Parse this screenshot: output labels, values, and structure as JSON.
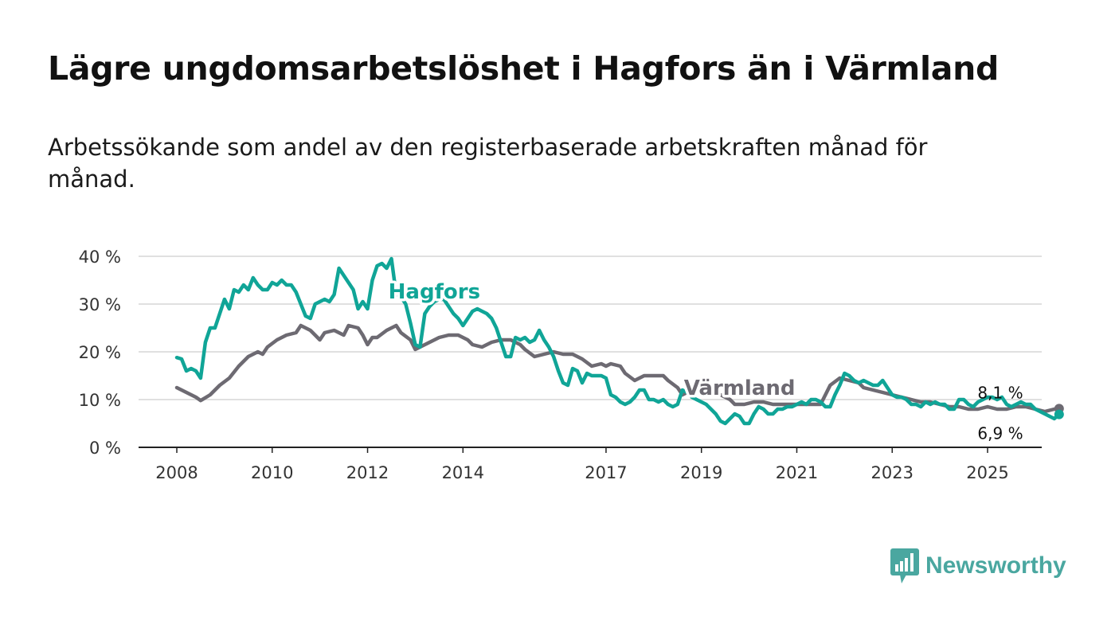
{
  "title": "Lägre ungdomsarbetslöshet i Hagfors än i Värmland",
  "subtitle": "Arbetssökande som andel av den registerbaserade arbetskraften månad för månad.",
  "brand": {
    "name": "Newsworthy",
    "logo_icon": "bar-chart-speech-bubble-icon"
  },
  "colors": {
    "hagfors": "#10a597",
    "varmland": "#6d6a72",
    "grid": "#d6d6d6",
    "brand": "#4aa7a0"
  },
  "chart_data": {
    "type": "line",
    "title": "Lägre ungdomsarbetslöshet i Hagfors än i Värmland",
    "xlabel": "",
    "ylabel": "",
    "ylim": [
      0,
      40
    ],
    "xlim": [
      2007.83,
      2026.5
    ],
    "yticks": [
      0,
      10,
      20,
      30,
      40
    ],
    "ytick_labels": [
      "0 %",
      "10 %",
      "20 %",
      "30 %",
      "40 %"
    ],
    "xticks": [
      2008,
      2010,
      2012,
      2014,
      2017,
      2019,
      2021,
      2023,
      2025
    ],
    "xtick_labels": [
      "2008",
      "2010",
      "2012",
      "2014",
      "2017",
      "2019",
      "2021",
      "2023",
      "2025"
    ],
    "grid": true,
    "series": [
      {
        "name": "Hagfors",
        "label_at": [
          2013.4,
          31.2
        ],
        "end_label": "6,9 %",
        "points": [
          [
            2008.0,
            18.8
          ],
          [
            2008.1,
            18.5
          ],
          [
            2008.2,
            16.0
          ],
          [
            2008.3,
            16.5
          ],
          [
            2008.4,
            16.0
          ],
          [
            2008.5,
            14.5
          ],
          [
            2008.6,
            22.0
          ],
          [
            2008.7,
            25.0
          ],
          [
            2008.8,
            25.0
          ],
          [
            2008.9,
            28.0
          ],
          [
            2009.0,
            31.0
          ],
          [
            2009.1,
            29.0
          ],
          [
            2009.2,
            33.0
          ],
          [
            2009.3,
            32.5
          ],
          [
            2009.4,
            34.0
          ],
          [
            2009.5,
            33.0
          ],
          [
            2009.6,
            35.5
          ],
          [
            2009.7,
            34.0
          ],
          [
            2009.8,
            33.0
          ],
          [
            2009.9,
            33.0
          ],
          [
            2010.0,
            34.5
          ],
          [
            2010.1,
            34.0
          ],
          [
            2010.2,
            35.0
          ],
          [
            2010.3,
            34.0
          ],
          [
            2010.4,
            34.0
          ],
          [
            2010.5,
            32.5
          ],
          [
            2010.6,
            30.0
          ],
          [
            2010.7,
            27.5
          ],
          [
            2010.8,
            27.0
          ],
          [
            2010.9,
            30.0
          ],
          [
            2011.0,
            30.5
          ],
          [
            2011.1,
            31.0
          ],
          [
            2011.2,
            30.5
          ],
          [
            2011.3,
            32.0
          ],
          [
            2011.4,
            37.5
          ],
          [
            2011.5,
            36.0
          ],
          [
            2011.6,
            34.5
          ],
          [
            2011.7,
            33.0
          ],
          [
            2011.8,
            29.0
          ],
          [
            2011.9,
            30.5
          ],
          [
            2012.0,
            29.0
          ],
          [
            2012.1,
            35.0
          ],
          [
            2012.2,
            38.0
          ],
          [
            2012.3,
            38.5
          ],
          [
            2012.4,
            37.5
          ],
          [
            2012.5,
            39.5
          ],
          [
            2012.6,
            32.0
          ],
          [
            2012.7,
            31.5
          ],
          [
            2012.8,
            30.0
          ],
          [
            2012.9,
            26.0
          ],
          [
            2013.0,
            21.5
          ],
          [
            2013.1,
            21.0
          ],
          [
            2013.2,
            28.0
          ],
          [
            2013.3,
            29.5
          ],
          [
            2013.4,
            30.5
          ],
          [
            2013.5,
            31.0
          ],
          [
            2013.6,
            31.0
          ],
          [
            2013.7,
            29.5
          ],
          [
            2013.8,
            28.0
          ],
          [
            2013.9,
            27.0
          ],
          [
            2014.0,
            25.5
          ],
          [
            2014.1,
            27.0
          ],
          [
            2014.2,
            28.5
          ],
          [
            2014.3,
            29.0
          ],
          [
            2014.4,
            28.5
          ],
          [
            2014.5,
            28.0
          ],
          [
            2014.6,
            27.0
          ],
          [
            2014.7,
            25.0
          ],
          [
            2014.8,
            22.0
          ],
          [
            2014.9,
            19.0
          ],
          [
            2015.0,
            19.0
          ],
          [
            2015.1,
            23.0
          ],
          [
            2015.2,
            22.5
          ],
          [
            2015.3,
            23.0
          ],
          [
            2015.4,
            22.0
          ],
          [
            2015.5,
            22.5
          ],
          [
            2015.6,
            24.5
          ],
          [
            2015.7,
            22.5
          ],
          [
            2015.8,
            21.0
          ],
          [
            2015.9,
            19.0
          ],
          [
            2016.0,
            16.0
          ],
          [
            2016.1,
            13.5
          ],
          [
            2016.2,
            13.0
          ],
          [
            2016.3,
            16.5
          ],
          [
            2016.4,
            16.0
          ],
          [
            2016.5,
            13.5
          ],
          [
            2016.6,
            15.5
          ],
          [
            2016.7,
            15.0
          ],
          [
            2016.8,
            15.0
          ],
          [
            2016.9,
            15.0
          ],
          [
            2017.0,
            14.5
          ],
          [
            2017.1,
            11.0
          ],
          [
            2017.2,
            10.5
          ],
          [
            2017.3,
            9.5
          ],
          [
            2017.4,
            9.0
          ],
          [
            2017.5,
            9.5
          ],
          [
            2017.6,
            10.5
          ],
          [
            2017.7,
            12.0
          ],
          [
            2017.8,
            12.0
          ],
          [
            2017.9,
            10.0
          ],
          [
            2018.0,
            10.0
          ],
          [
            2018.1,
            9.5
          ],
          [
            2018.2,
            10.0
          ],
          [
            2018.3,
            9.0
          ],
          [
            2018.4,
            8.5
          ],
          [
            2018.5,
            9.0
          ],
          [
            2018.6,
            12.0
          ],
          [
            2018.7,
            11.5
          ],
          [
            2018.8,
            10.5
          ],
          [
            2018.9,
            10.0
          ],
          [
            2019.0,
            9.5
          ],
          [
            2019.1,
            9.0
          ],
          [
            2019.2,
            8.0
          ],
          [
            2019.3,
            7.0
          ],
          [
            2019.4,
            5.5
          ],
          [
            2019.5,
            5.0
          ],
          [
            2019.6,
            6.0
          ],
          [
            2019.7,
            7.0
          ],
          [
            2019.8,
            6.5
          ],
          [
            2019.9,
            5.0
          ],
          [
            2020.0,
            5.0
          ],
          [
            2020.1,
            7.0
          ],
          [
            2020.2,
            8.5
          ],
          [
            2020.3,
            8.0
          ],
          [
            2020.4,
            7.0
          ],
          [
            2020.5,
            7.0
          ],
          [
            2020.6,
            8.0
          ],
          [
            2020.7,
            8.0
          ],
          [
            2020.8,
            8.5
          ],
          [
            2020.9,
            8.5
          ],
          [
            2021.0,
            9.0
          ],
          [
            2021.1,
            9.5
          ],
          [
            2021.2,
            9.0
          ],
          [
            2021.3,
            10.0
          ],
          [
            2021.4,
            10.0
          ],
          [
            2021.5,
            9.5
          ],
          [
            2021.6,
            8.5
          ],
          [
            2021.7,
            8.5
          ],
          [
            2021.8,
            11.0
          ],
          [
            2021.9,
            13.0
          ],
          [
            2022.0,
            15.5
          ],
          [
            2022.1,
            15.0
          ],
          [
            2022.2,
            14.0
          ],
          [
            2022.3,
            13.5
          ],
          [
            2022.4,
            14.0
          ],
          [
            2022.5,
            13.5
          ],
          [
            2022.6,
            13.0
          ],
          [
            2022.7,
            13.0
          ],
          [
            2022.8,
            14.0
          ],
          [
            2022.9,
            12.5
          ],
          [
            2023.0,
            11.0
          ],
          [
            2023.1,
            10.5
          ],
          [
            2023.2,
            10.5
          ],
          [
            2023.3,
            10.0
          ],
          [
            2023.4,
            9.0
          ],
          [
            2023.5,
            9.0
          ],
          [
            2023.6,
            8.5
          ],
          [
            2023.7,
            9.5
          ],
          [
            2023.8,
            9.0
          ],
          [
            2023.9,
            9.5
          ],
          [
            2024.0,
            9.0
          ],
          [
            2024.1,
            9.0
          ],
          [
            2024.2,
            8.0
          ],
          [
            2024.3,
            8.0
          ],
          [
            2024.4,
            10.0
          ],
          [
            2024.5,
            10.0
          ],
          [
            2024.6,
            9.0
          ],
          [
            2024.7,
            8.5
          ],
          [
            2024.8,
            9.5
          ],
          [
            2024.9,
            10.0
          ],
          [
            2025.0,
            10.5
          ],
          [
            2025.1,
            10.5
          ],
          [
            2025.2,
            10.0
          ],
          [
            2025.3,
            10.5
          ],
          [
            2025.4,
            9.0
          ],
          [
            2025.5,
            8.5
          ],
          [
            2025.6,
            9.0
          ],
          [
            2025.7,
            9.5
          ],
          [
            2025.8,
            9.0
          ],
          [
            2025.9,
            9.0
          ],
          [
            2026.0,
            8.0
          ],
          [
            2026.1,
            7.5
          ],
          [
            2026.2,
            7.0
          ],
          [
            2026.3,
            6.5
          ],
          [
            2026.4,
            6.0
          ],
          [
            2026.5,
            6.9
          ]
        ]
      },
      {
        "name": "Värmland",
        "label_at": [
          2019.8,
          11.0
        ],
        "end_label": "8,1 %",
        "points": [
          [
            2008.0,
            12.5
          ],
          [
            2008.2,
            11.5
          ],
          [
            2008.4,
            10.5
          ],
          [
            2008.5,
            9.8
          ],
          [
            2008.7,
            11.0
          ],
          [
            2008.9,
            13.0
          ],
          [
            2009.1,
            14.5
          ],
          [
            2009.3,
            17.0
          ],
          [
            2009.5,
            19.0
          ],
          [
            2009.7,
            20.0
          ],
          [
            2009.8,
            19.5
          ],
          [
            2009.9,
            21.0
          ],
          [
            2010.1,
            22.5
          ],
          [
            2010.3,
            23.5
          ],
          [
            2010.5,
            24.0
          ],
          [
            2010.6,
            25.5
          ],
          [
            2010.8,
            24.5
          ],
          [
            2010.9,
            23.5
          ],
          [
            2011.0,
            22.5
          ],
          [
            2011.1,
            24.0
          ],
          [
            2011.3,
            24.5
          ],
          [
            2011.5,
            23.5
          ],
          [
            2011.6,
            25.5
          ],
          [
            2011.8,
            25.0
          ],
          [
            2011.9,
            23.5
          ],
          [
            2012.0,
            21.5
          ],
          [
            2012.1,
            23.0
          ],
          [
            2012.2,
            23.0
          ],
          [
            2012.4,
            24.5
          ],
          [
            2012.6,
            25.5
          ],
          [
            2012.7,
            24.0
          ],
          [
            2012.9,
            22.5
          ],
          [
            2013.0,
            20.5
          ],
          [
            2013.1,
            21.0
          ],
          [
            2013.3,
            22.0
          ],
          [
            2013.5,
            23.0
          ],
          [
            2013.7,
            23.5
          ],
          [
            2013.9,
            23.5
          ],
          [
            2014.1,
            22.5
          ],
          [
            2014.2,
            21.5
          ],
          [
            2014.4,
            21.0
          ],
          [
            2014.6,
            22.0
          ],
          [
            2014.8,
            22.5
          ],
          [
            2015.0,
            22.5
          ],
          [
            2015.2,
            21.5
          ],
          [
            2015.3,
            20.5
          ],
          [
            2015.5,
            19.0
          ],
          [
            2015.7,
            19.5
          ],
          [
            2015.9,
            20.0
          ],
          [
            2016.1,
            19.5
          ],
          [
            2016.3,
            19.5
          ],
          [
            2016.5,
            18.5
          ],
          [
            2016.7,
            17.0
          ],
          [
            2016.9,
            17.5
          ],
          [
            2017.0,
            17.0
          ],
          [
            2017.1,
            17.5
          ],
          [
            2017.3,
            17.0
          ],
          [
            2017.4,
            15.5
          ],
          [
            2017.6,
            14.0
          ],
          [
            2017.8,
            15.0
          ],
          [
            2018.0,
            15.0
          ],
          [
            2018.2,
            15.0
          ],
          [
            2018.3,
            14.0
          ],
          [
            2018.5,
            12.5
          ],
          [
            2018.6,
            11.0
          ],
          [
            2018.8,
            12.0
          ],
          [
            2019.0,
            12.5
          ],
          [
            2019.2,
            11.5
          ],
          [
            2019.4,
            11.0
          ],
          [
            2019.6,
            10.0
          ],
          [
            2019.7,
            9.0
          ],
          [
            2019.9,
            9.0
          ],
          [
            2020.1,
            9.5
          ],
          [
            2020.3,
            9.5
          ],
          [
            2020.5,
            9.0
          ],
          [
            2020.7,
            9.0
          ],
          [
            2020.9,
            9.0
          ],
          [
            2021.1,
            9.0
          ],
          [
            2021.3,
            9.0
          ],
          [
            2021.5,
            9.0
          ],
          [
            2021.7,
            13.0
          ],
          [
            2021.9,
            14.5
          ],
          [
            2022.1,
            14.0
          ],
          [
            2022.3,
            13.5
          ],
          [
            2022.4,
            12.5
          ],
          [
            2022.6,
            12.0
          ],
          [
            2022.8,
            11.5
          ],
          [
            2023.0,
            11.0
          ],
          [
            2023.2,
            10.5
          ],
          [
            2023.4,
            10.0
          ],
          [
            2023.6,
            9.5
          ],
          [
            2023.8,
            9.5
          ],
          [
            2024.0,
            9.0
          ],
          [
            2024.2,
            8.5
          ],
          [
            2024.4,
            8.5
          ],
          [
            2024.6,
            8.0
          ],
          [
            2024.8,
            8.0
          ],
          [
            2025.0,
            8.5
          ],
          [
            2025.2,
            8.0
          ],
          [
            2025.4,
            8.0
          ],
          [
            2025.6,
            8.5
          ],
          [
            2025.8,
            8.5
          ],
          [
            2026.0,
            8.0
          ],
          [
            2026.2,
            7.5
          ],
          [
            2026.4,
            8.0
          ],
          [
            2026.5,
            8.1
          ]
        ]
      }
    ]
  }
}
